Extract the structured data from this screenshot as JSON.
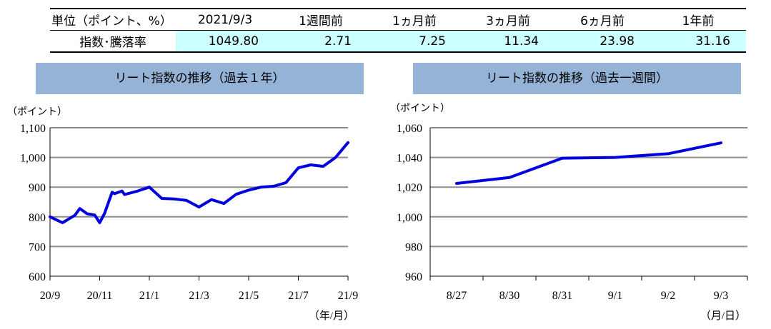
{
  "table": {
    "unit_label": "単位（ポイント、%）",
    "headers": [
      "2021/9/3",
      "1週間前",
      "1ヵ月前",
      "3ヵ月前",
      "6ヵ月前",
      "1年前"
    ],
    "row_label": "指数･騰落率",
    "values": [
      "1049.80",
      "2.71",
      "7.25",
      "11.34",
      "23.98",
      "31.16"
    ]
  },
  "chart_data": [
    {
      "type": "line",
      "title": "リート指数の推移（過去１年）",
      "ylabel": "（ポイント）",
      "xlabel": "（年/月）",
      "ylim": [
        600,
        1100
      ],
      "yticks": [
        "600",
        "700",
        "800",
        "900",
        "1,000",
        "1,100"
      ],
      "xticks": [
        "20/9",
        "20/11",
        "21/1",
        "21/3",
        "21/5",
        "21/7",
        "21/9"
      ],
      "grid": true,
      "color": "#0000dd",
      "series": [
        {
          "x": [
            0,
            0.5,
            1,
            1.2,
            1.5,
            1.8,
            2,
            2.2,
            2.5,
            2.6,
            2.9,
            3,
            3.5,
            4,
            4.5,
            5,
            5.5,
            6,
            6.5,
            7,
            7.5,
            8,
            8.5,
            9,
            9.5,
            10,
            10.5,
            11,
            11.5,
            12
          ],
          "y": [
            800,
            780,
            805,
            828,
            810,
            806,
            780,
            812,
            883,
            878,
            887,
            875,
            886,
            900,
            862,
            860,
            855,
            833,
            858,
            845,
            876,
            890,
            900,
            903,
            915,
            965,
            975,
            970,
            1000,
            1050
          ]
        }
      ]
    },
    {
      "type": "line",
      "title": "リート指数の推移（過去一週間）",
      "ylabel": "（ポイント）",
      "xlabel": "（月/日）",
      "ylim": [
        960,
        1060
      ],
      "yticks": [
        "960",
        "980",
        "1,000",
        "1,020",
        "1,040",
        "1,060"
      ],
      "categories": [
        "8/27",
        "8/30",
        "8/31",
        "9/1",
        "9/2",
        "9/3"
      ],
      "grid": true,
      "color": "#0000dd",
      "series": [
        {
          "values": [
            1022.5,
            1026.5,
            1039.5,
            1040.0,
            1042.5,
            1049.8
          ]
        }
      ]
    }
  ]
}
